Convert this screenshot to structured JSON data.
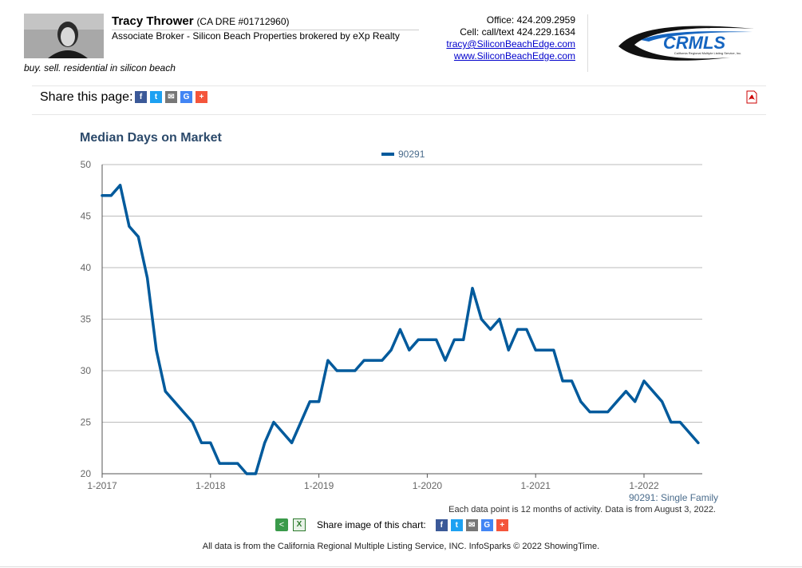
{
  "agent": {
    "name": "Tracy Thrower",
    "license": "(CA DRE #01712960)",
    "title": "Associate Broker - Silicon Beach Properties brokered by eXp Realty",
    "tagline": "buy. sell. residential in silicon beach"
  },
  "contact": {
    "office": "Office: 424.209.2959",
    "cell": "Cell: call/text 424.229.1634",
    "email": "tracy@SiliconBeachEdge.com",
    "website": "www.SiliconBeachEdge.com"
  },
  "logo": {
    "text": "CRMLS",
    "subtext": "California Regional Multiple Listing Service, Inc."
  },
  "share_page": {
    "label": "Share this page:",
    "icons": [
      "facebook-icon",
      "twitter-icon",
      "email-icon",
      "google-icon",
      "plus-icon"
    ]
  },
  "share_image": {
    "label": "Share image of this chart:"
  },
  "footer": "All data is from the California Regional Multiple Listing Service, INC. InfoSparks © 2022 ShowingTime.",
  "chart_note": "Each data point is 12 months of activity. Data is from August 3, 2022.",
  "series_label": "90291: Single Family",
  "colors": {
    "series": "#005a9c",
    "title": "#2c4a6b",
    "grid": "#bbbbbb"
  },
  "chart_data": {
    "type": "line",
    "title": "Median Days on Market",
    "xlabel": "",
    "ylabel": "",
    "ylim": [
      20,
      50
    ],
    "yticks": [
      20,
      25,
      30,
      35,
      40,
      45,
      50
    ],
    "xticks": [
      "1-2017",
      "1-2018",
      "1-2019",
      "1-2020",
      "1-2021",
      "1-2022"
    ],
    "x_start": "2017-01",
    "x_end": "2022-07",
    "legend": "top-center",
    "grid": true,
    "series": [
      {
        "name": "90291",
        "values": [
          47,
          47,
          48,
          44,
          43,
          39,
          32,
          28,
          27,
          26,
          25,
          23,
          23,
          21,
          21,
          21,
          20,
          20,
          23,
          25,
          24,
          23,
          25,
          27,
          27,
          31,
          30,
          30,
          30,
          31,
          31,
          31,
          32,
          34,
          32,
          33,
          33,
          33,
          31,
          33,
          33,
          38,
          35,
          34,
          35,
          32,
          34,
          34,
          32,
          32,
          32,
          29,
          29,
          27,
          26,
          26,
          26,
          27,
          28,
          27,
          29,
          28,
          27,
          25,
          25,
          24,
          23
        ]
      }
    ]
  }
}
